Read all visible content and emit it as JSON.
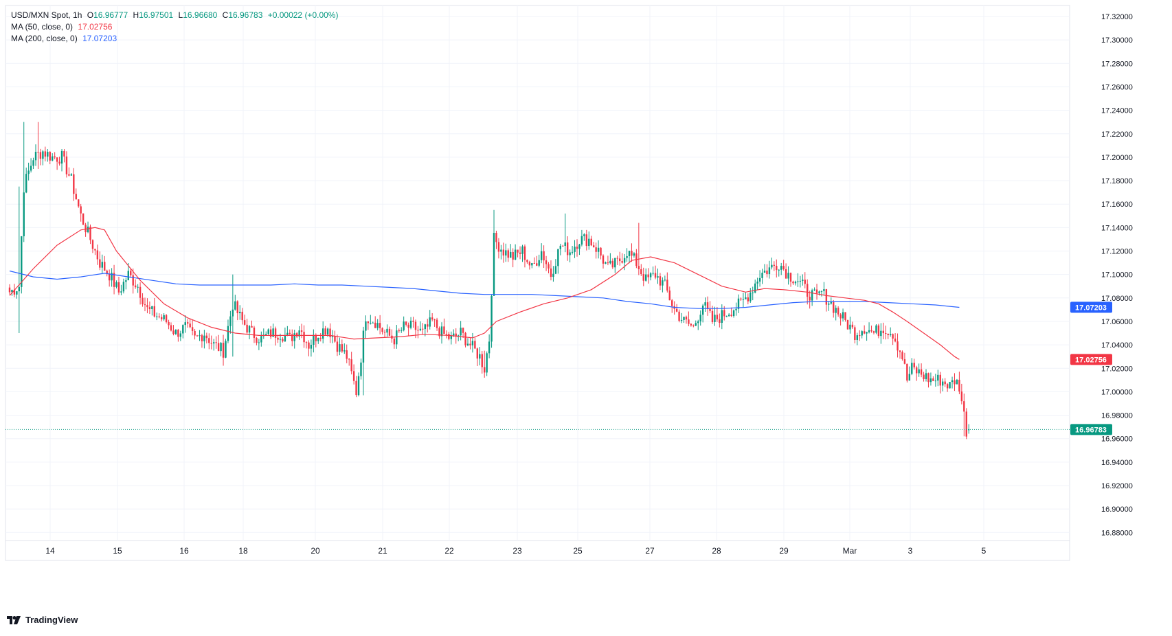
{
  "legend": {
    "symbol": "USD/MXN Spot, 1h",
    "open_label": "O",
    "open": "16.96777",
    "high_label": "H",
    "high": "16.97501",
    "low_label": "L",
    "low": "16.96680",
    "close_label": "C",
    "close": "16.96783",
    "change": "+0.00022 (+0.00%)",
    "ma50_label": "MA (50, close, 0)",
    "ma50_value": "17.02756",
    "ma200_label": "MA (200, close, 0)",
    "ma200_value": "17.07203"
  },
  "brand": {
    "name": "TradingView",
    "icon": "tradingview-logo-icon"
  },
  "colors": {
    "up": "#089981",
    "down": "#f23645",
    "ma50": "#f23645",
    "ma200": "#2962ff",
    "grid": "#f0f3fa",
    "text": "#131722"
  },
  "chart_data": {
    "type": "candlestick",
    "title": "USD/MXN Spot, 1h",
    "xlabel": "",
    "ylabel": "",
    "ylim": [
      16.87,
      17.33
    ],
    "grid": true,
    "x_ticks": [
      "14",
      "15",
      "16",
      "18",
      "20",
      "21",
      "22",
      "23",
      "25",
      "27",
      "28",
      "29",
      "Mar",
      "3",
      "5"
    ],
    "y_ticks": [
      "17.32000",
      "17.30000",
      "17.28000",
      "17.26000",
      "17.24000",
      "17.22000",
      "17.20000",
      "17.18000",
      "17.16000",
      "17.14000",
      "17.12000",
      "17.10000",
      "17.08000",
      "17.06000",
      "17.04000",
      "17.02000",
      "17.00000",
      "16.98000",
      "16.96000",
      "16.94000",
      "16.92000",
      "16.90000",
      "16.88000"
    ],
    "y_tick_values": [
      17.32,
      17.3,
      17.28,
      17.26,
      17.24,
      17.22,
      17.2,
      17.18,
      17.16,
      17.14,
      17.12,
      17.1,
      17.08,
      17.06,
      17.04,
      17.02,
      17.0,
      16.98,
      16.96,
      16.94,
      16.92,
      16.9,
      16.88
    ],
    "close_path": [
      [
        0,
        17.085
      ],
      [
        4,
        17.09
      ],
      [
        6,
        17.175
      ],
      [
        10,
        17.2
      ],
      [
        14,
        17.205
      ],
      [
        18,
        17.2
      ],
      [
        22,
        17.2
      ],
      [
        26,
        17.18
      ],
      [
        30,
        17.15
      ],
      [
        34,
        17.13
      ],
      [
        38,
        17.11
      ],
      [
        42,
        17.1
      ],
      [
        46,
        17.085
      ],
      [
        50,
        17.1
      ],
      [
        54,
        17.09
      ],
      [
        58,
        17.07
      ],
      [
        62,
        17.065
      ],
      [
        66,
        17.06
      ],
      [
        70,
        17.05
      ],
      [
        74,
        17.055
      ],
      [
        78,
        17.045
      ],
      [
        82,
        17.05
      ],
      [
        86,
        17.04
      ],
      [
        90,
        17.035
      ],
      [
        94,
        17.075
      ],
      [
        98,
        17.06
      ],
      [
        102,
        17.05
      ],
      [
        106,
        17.045
      ],
      [
        110,
        17.05
      ],
      [
        114,
        17.05
      ],
      [
        118,
        17.045
      ],
      [
        122,
        17.055
      ],
      [
        126,
        17.04
      ],
      [
        130,
        17.05
      ],
      [
        134,
        17.055
      ],
      [
        138,
        17.04
      ],
      [
        142,
        17.03
      ],
      [
        146,
        17.0
      ],
      [
        148,
        17.03
      ],
      [
        150,
        17.065
      ],
      [
        154,
        17.06
      ],
      [
        158,
        17.05
      ],
      [
        162,
        17.045
      ],
      [
        166,
        17.055
      ],
      [
        170,
        17.055
      ],
      [
        174,
        17.05
      ],
      [
        178,
        17.06
      ],
      [
        182,
        17.05
      ],
      [
        186,
        17.045
      ],
      [
        190,
        17.05
      ],
      [
        194,
        17.04
      ],
      [
        198,
        17.03
      ],
      [
        200,
        17.02
      ],
      [
        202,
        17.045
      ],
      [
        204,
        17.13
      ],
      [
        208,
        17.12
      ],
      [
        212,
        17.115
      ],
      [
        216,
        17.12
      ],
      [
        220,
        17.105
      ],
      [
        224,
        17.12
      ],
      [
        228,
        17.1
      ],
      [
        232,
        17.125
      ],
      [
        236,
        17.12
      ],
      [
        240,
        17.13
      ],
      [
        244,
        17.13
      ],
      [
        248,
        17.12
      ],
      [
        252,
        17.105
      ],
      [
        256,
        17.11
      ],
      [
        260,
        17.12
      ],
      [
        264,
        17.11
      ],
      [
        268,
        17.095
      ],
      [
        272,
        17.1
      ],
      [
        276,
        17.09
      ],
      [
        280,
        17.07
      ],
      [
        284,
        17.06
      ],
      [
        288,
        17.055
      ],
      [
        292,
        17.075
      ],
      [
        296,
        17.06
      ],
      [
        300,
        17.065
      ],
      [
        304,
        17.07
      ],
      [
        308,
        17.075
      ],
      [
        312,
        17.085
      ],
      [
        316,
        17.1
      ],
      [
        320,
        17.105
      ],
      [
        324,
        17.11
      ],
      [
        328,
        17.1
      ],
      [
        332,
        17.095
      ],
      [
        336,
        17.085
      ],
      [
        340,
        17.08
      ],
      [
        342,
        17.085
      ],
      [
        344,
        17.08
      ],
      [
        348,
        17.07
      ],
      [
        352,
        17.06
      ],
      [
        356,
        17.05
      ],
      [
        360,
        17.055
      ],
      [
        364,
        17.05
      ],
      [
        368,
        17.055
      ],
      [
        372,
        17.05
      ],
      [
        376,
        17.03
      ],
      [
        378,
        17.01
      ],
      [
        380,
        17.02
      ],
      [
        384,
        17.015
      ],
      [
        388,
        17.01
      ],
      [
        392,
        17.01
      ],
      [
        396,
        17.005
      ],
      [
        398,
        17.01
      ],
      [
        400,
        17.005
      ],
      [
        402,
        16.98
      ],
      [
        403,
        16.967
      ],
      [
        404,
        16.968
      ]
    ],
    "ma50_path": [
      [
        0,
        17.082
      ],
      [
        10,
        17.105
      ],
      [
        20,
        17.125
      ],
      [
        30,
        17.138
      ],
      [
        36,
        17.14
      ],
      [
        40,
        17.138
      ],
      [
        45,
        17.12
      ],
      [
        55,
        17.095
      ],
      [
        65,
        17.075
      ],
      [
        75,
        17.063
      ],
      [
        85,
        17.055
      ],
      [
        95,
        17.05
      ],
      [
        105,
        17.048
      ],
      [
        115,
        17.048
      ],
      [
        125,
        17.048
      ],
      [
        135,
        17.048
      ],
      [
        145,
        17.045
      ],
      [
        155,
        17.046
      ],
      [
        165,
        17.047
      ],
      [
        175,
        17.049
      ],
      [
        185,
        17.048
      ],
      [
        195,
        17.046
      ],
      [
        200,
        17.05
      ],
      [
        205,
        17.06
      ],
      [
        215,
        17.068
      ],
      [
        225,
        17.075
      ],
      [
        235,
        17.08
      ],
      [
        245,
        17.087
      ],
      [
        255,
        17.1
      ],
      [
        262,
        17.112
      ],
      [
        270,
        17.115
      ],
      [
        280,
        17.11
      ],
      [
        290,
        17.1
      ],
      [
        300,
        17.09
      ],
      [
        310,
        17.085
      ],
      [
        318,
        17.088
      ],
      [
        326,
        17.087
      ],
      [
        336,
        17.085
      ],
      [
        344,
        17.082
      ],
      [
        352,
        17.08
      ],
      [
        360,
        17.078
      ],
      [
        366,
        17.075
      ],
      [
        372,
        17.068
      ],
      [
        378,
        17.06
      ],
      [
        385,
        17.05
      ],
      [
        392,
        17.04
      ],
      [
        398,
        17.03
      ],
      [
        400,
        17.0276
      ]
    ],
    "ma200_path": [
      [
        0,
        17.103
      ],
      [
        10,
        17.098
      ],
      [
        20,
        17.096
      ],
      [
        30,
        17.098
      ],
      [
        40,
        17.101
      ],
      [
        50,
        17.098
      ],
      [
        60,
        17.095
      ],
      [
        70,
        17.092
      ],
      [
        80,
        17.091
      ],
      [
        90,
        17.091
      ],
      [
        100,
        17.091
      ],
      [
        110,
        17.091
      ],
      [
        120,
        17.092
      ],
      [
        130,
        17.091
      ],
      [
        140,
        17.091
      ],
      [
        150,
        17.09
      ],
      [
        160,
        17.089
      ],
      [
        170,
        17.088
      ],
      [
        180,
        17.086
      ],
      [
        190,
        17.084
      ],
      [
        200,
        17.083
      ],
      [
        210,
        17.083
      ],
      [
        220,
        17.083
      ],
      [
        230,
        17.082
      ],
      [
        240,
        17.081
      ],
      [
        250,
        17.08
      ],
      [
        260,
        17.077
      ],
      [
        270,
        17.075
      ],
      [
        280,
        17.072
      ],
      [
        290,
        17.071
      ],
      [
        300,
        17.071
      ],
      [
        310,
        17.072
      ],
      [
        320,
        17.074
      ],
      [
        330,
        17.076
      ],
      [
        340,
        17.077
      ],
      [
        350,
        17.077
      ],
      [
        360,
        17.077
      ],
      [
        370,
        17.076
      ],
      [
        380,
        17.075
      ],
      [
        390,
        17.074
      ],
      [
        400,
        17.072
      ]
    ],
    "spikes": [
      [
        4,
        17.175,
        17.05
      ],
      [
        6,
        17.23,
        17.2
      ],
      [
        12,
        17.23,
        17.19
      ],
      [
        94,
        17.1,
        17.03
      ],
      [
        149,
        17.0,
        16.997
      ],
      [
        200,
        17.035,
        17.012
      ],
      [
        204,
        17.155,
        17.12
      ],
      [
        234,
        17.152,
        17.12
      ],
      [
        265,
        17.144,
        17.125
      ],
      [
        402,
        16.99,
        16.962
      ]
    ],
    "series": [
      {
        "name": "USD/MXN Spot, 1h",
        "last": 16.96783
      },
      {
        "name": "MA (50, close, 0)",
        "last": 17.02756
      },
      {
        "name": "MA (200, close, 0)",
        "last": 17.07203
      }
    ]
  }
}
